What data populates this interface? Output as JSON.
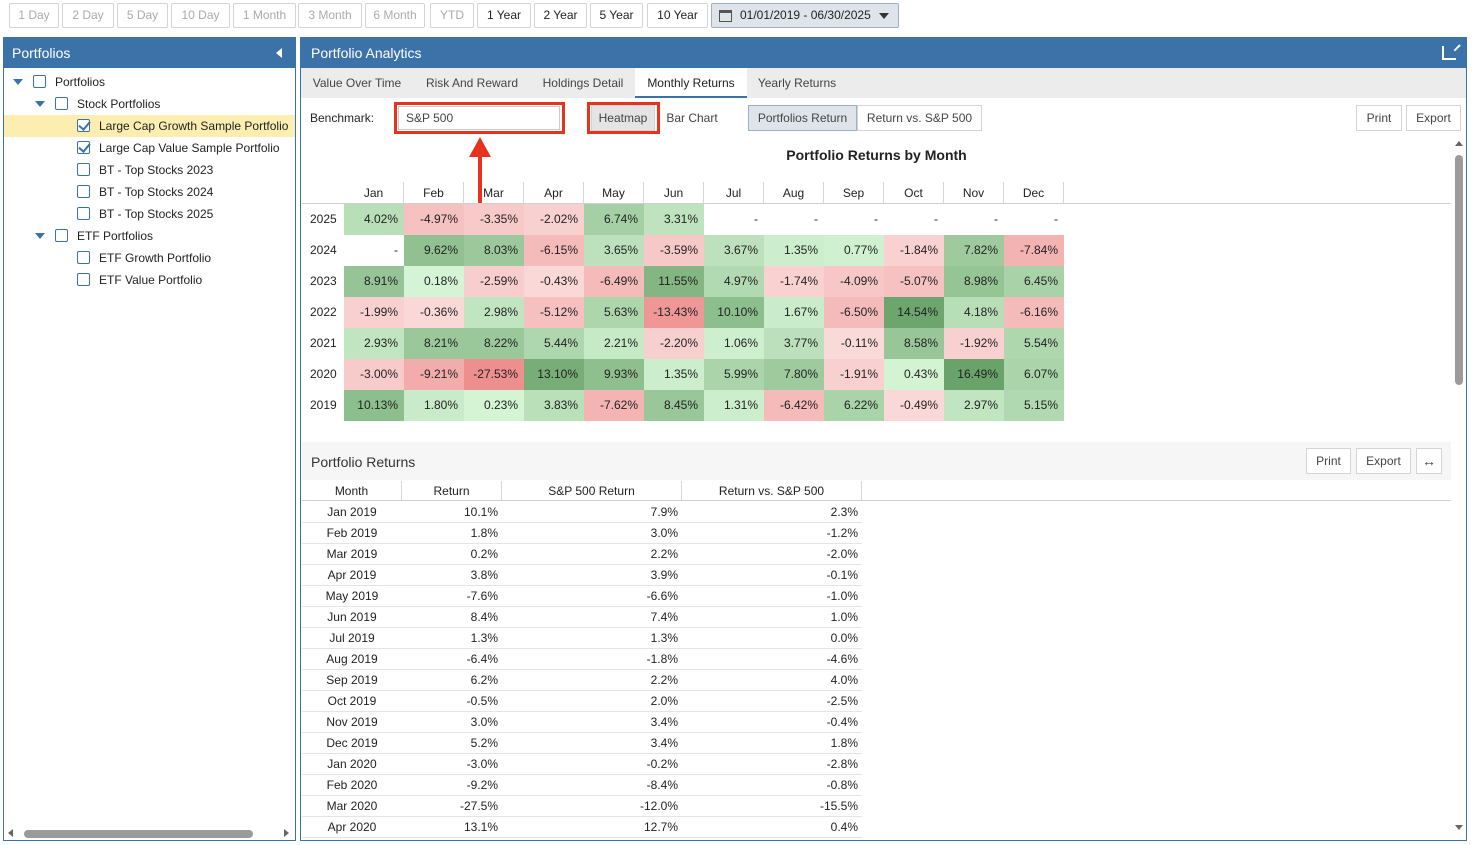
{
  "range_buttons": [
    {
      "label": "1 Day",
      "enabled": false
    },
    {
      "label": "2 Day",
      "enabled": false
    },
    {
      "label": "5 Day",
      "enabled": false
    },
    {
      "label": "10 Day",
      "enabled": false
    },
    {
      "label": "1 Month",
      "enabled": false
    },
    {
      "label": "3 Month",
      "enabled": false
    },
    {
      "label": "6 Month",
      "enabled": false
    },
    {
      "label": "YTD",
      "enabled": false
    },
    {
      "label": "1 Year",
      "enabled": true
    },
    {
      "label": "2 Year",
      "enabled": true
    },
    {
      "label": "5 Year",
      "enabled": true
    },
    {
      "label": "10 Year",
      "enabled": true
    }
  ],
  "date_range": "01/01/2019 - 06/30/2025",
  "sidebar": {
    "title": "Portfolios",
    "tree": [
      {
        "label": "Portfolios",
        "level": 0,
        "toggle": true,
        "checked": false,
        "selected": false
      },
      {
        "label": "Stock Portfolios",
        "level": 1,
        "toggle": true,
        "checked": false,
        "selected": false
      },
      {
        "label": "Large Cap Growth Sample Portfolio",
        "level": 2,
        "toggle": false,
        "checked": true,
        "selected": true
      },
      {
        "label": "Large Cap Value Sample Portfolio",
        "level": 2,
        "toggle": false,
        "checked": true,
        "selected": false
      },
      {
        "label": "BT - Top Stocks 2023",
        "level": 2,
        "toggle": false,
        "checked": false,
        "selected": false
      },
      {
        "label": "BT - Top Stocks 2024",
        "level": 2,
        "toggle": false,
        "checked": false,
        "selected": false
      },
      {
        "label": "BT - Top Stocks 2025",
        "level": 2,
        "toggle": false,
        "checked": false,
        "selected": false
      },
      {
        "label": "ETF Portfolios",
        "level": 1,
        "toggle": true,
        "checked": false,
        "selected": false
      },
      {
        "label": "ETF Growth Portfolio",
        "level": 2,
        "toggle": false,
        "checked": false,
        "selected": false
      },
      {
        "label": "ETF Value Portfolio",
        "level": 2,
        "toggle": false,
        "checked": false,
        "selected": false
      }
    ]
  },
  "main": {
    "title": "Portfolio Analytics",
    "tabs": [
      "Value Over Time",
      "Risk And Reward",
      "Holdings Detail",
      "Monthly Returns",
      "Yearly Returns"
    ],
    "active_tab": 3,
    "benchmark_label": "Benchmark:",
    "benchmark_value": "S&P 500",
    "view_buttons": {
      "heatmap": "Heatmap",
      "bar_chart": "Bar Chart"
    },
    "mode_buttons": {
      "portfolios_return": "Portfolios Return",
      "return_vs": "Return vs. S&P 500"
    },
    "print_label": "Print",
    "export_label": "Export"
  },
  "chart_data": {
    "type": "heatmap",
    "title": "Portfolio Returns by Month",
    "columns": [
      "Jan",
      "Feb",
      "Mar",
      "Apr",
      "May",
      "Jun",
      "Jul",
      "Aug",
      "Sep",
      "Oct",
      "Nov",
      "Dec"
    ],
    "rows": [
      {
        "year": "2025",
        "values": [
          "4.02%",
          "-4.97%",
          "-3.35%",
          "-2.02%",
          "6.74%",
          "3.31%",
          "-",
          "-",
          "-",
          "-",
          "-",
          "-"
        ]
      },
      {
        "year": "2024",
        "values": [
          "-",
          "9.62%",
          "8.03%",
          "-6.15%",
          "3.65%",
          "-3.59%",
          "3.67%",
          "1.35%",
          "0.77%",
          "-1.84%",
          "7.82%",
          "-7.84%"
        ]
      },
      {
        "year": "2023",
        "values": [
          "8.91%",
          "0.18%",
          "-2.59%",
          "-0.43%",
          "-6.49%",
          "11.55%",
          "4.97%",
          "-1.74%",
          "-4.09%",
          "-5.07%",
          "8.98%",
          "6.45%"
        ]
      },
      {
        "year": "2022",
        "values": [
          "-1.99%",
          "-0.36%",
          "2.98%",
          "-5.12%",
          "5.63%",
          "-13.43%",
          "10.10%",
          "1.67%",
          "-6.50%",
          "14.54%",
          "4.18%",
          "-6.16%"
        ]
      },
      {
        "year": "2021",
        "values": [
          "2.93%",
          "8.21%",
          "8.22%",
          "5.44%",
          "2.21%",
          "-2.20%",
          "1.06%",
          "3.77%",
          "-0.11%",
          "8.58%",
          "-1.92%",
          "5.54%"
        ]
      },
      {
        "year": "2020",
        "values": [
          "-3.00%",
          "-9.21%",
          "-27.53%",
          "13.10%",
          "9.93%",
          "1.35%",
          "5.99%",
          "7.80%",
          "-1.91%",
          "0.43%",
          "16.49%",
          "6.07%"
        ]
      },
      {
        "year": "2019",
        "values": [
          "10.13%",
          "1.80%",
          "0.23%",
          "3.83%",
          "-7.62%",
          "8.45%",
          "1.31%",
          "-6.42%",
          "6.22%",
          "-0.49%",
          "2.97%",
          "5.15%"
        ]
      }
    ],
    "colors": {
      "pos_low": "#d6f5d6",
      "pos_high": "#6aa36a",
      "neg_low": "#fadada",
      "neg_high": "#ee8f8f",
      "empty": "#ffffff"
    }
  },
  "returns_table": {
    "title": "Portfolio Returns",
    "print_label": "Print",
    "export_label": "Export",
    "columns": [
      "Month",
      "Return",
      "S&P 500 Return",
      "Return vs. S&P 500"
    ],
    "rows": [
      [
        "Jan 2019",
        "10.1%",
        "7.9%",
        "2.3%"
      ],
      [
        "Feb 2019",
        "1.8%",
        "3.0%",
        "-1.2%"
      ],
      [
        "Mar 2019",
        "0.2%",
        "2.2%",
        "-2.0%"
      ],
      [
        "Apr 2019",
        "3.8%",
        "3.9%",
        "-0.1%"
      ],
      [
        "May 2019",
        "-7.6%",
        "-6.6%",
        "-1.0%"
      ],
      [
        "Jun 2019",
        "8.4%",
        "7.4%",
        "1.0%"
      ],
      [
        "Jul 2019",
        "1.3%",
        "1.3%",
        "0.0%"
      ],
      [
        "Aug 2019",
        "-6.4%",
        "-1.8%",
        "-4.6%"
      ],
      [
        "Sep 2019",
        "6.2%",
        "2.2%",
        "4.0%"
      ],
      [
        "Oct 2019",
        "-0.5%",
        "2.0%",
        "-2.5%"
      ],
      [
        "Nov 2019",
        "3.0%",
        "3.4%",
        "-0.4%"
      ],
      [
        "Dec 2019",
        "5.2%",
        "3.4%",
        "1.8%"
      ],
      [
        "Jan 2020",
        "-3.0%",
        "-0.2%",
        "-2.8%"
      ],
      [
        "Feb 2020",
        "-9.2%",
        "-8.4%",
        "-0.8%"
      ],
      [
        "Mar 2020",
        "-27.5%",
        "-12.0%",
        "-15.5%"
      ],
      [
        "Apr 2020",
        "13.1%",
        "12.7%",
        "0.4%"
      ]
    ]
  },
  "annotation_color": "#e8321e"
}
